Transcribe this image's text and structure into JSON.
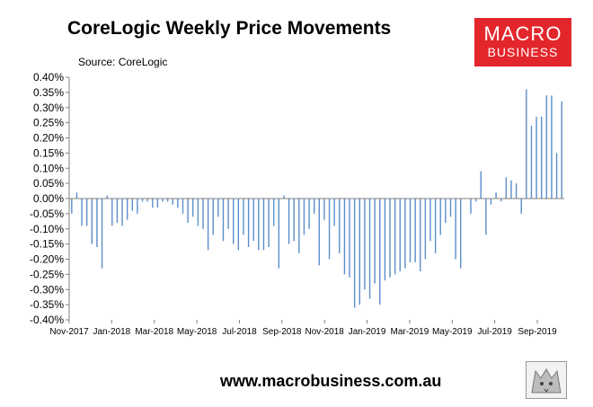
{
  "header": {
    "title": "CoreLogic Weekly Price Movements",
    "source": "Source: CoreLogic"
  },
  "logo": {
    "line1": "MACRO",
    "line2": "BUSINESS"
  },
  "footer": {
    "url": "www.macrobusiness.com.au"
  },
  "colors": {
    "bar": "#5b8ecb",
    "logo_bg": "#e3262c",
    "axis": "#808080"
  },
  "chart_data": {
    "type": "bar",
    "title": "CoreLogic Weekly Price Movements",
    "source": "Source: CoreLogic",
    "ylim": [
      -0.4,
      0.4
    ],
    "yticks": [
      "0.40%",
      "0.35%",
      "0.30%",
      "0.25%",
      "0.20%",
      "0.15%",
      "0.10%",
      "0.05%",
      "0.00%",
      "-0.05%",
      "-0.10%",
      "-0.15%",
      "-0.20%",
      "-0.25%",
      "-0.30%",
      "-0.35%",
      "-0.40%"
    ],
    "xtick_labels": [
      "Nov-2017",
      "Jan-2018",
      "Mar-2018",
      "May-2018",
      "Jul-2018",
      "Sep-2018",
      "Nov-2018",
      "Jan-2019",
      "Mar-2019",
      "May-2019",
      "Jul-2019",
      "Sep-2019"
    ],
    "grid": false,
    "unit": "%",
    "values": [
      -0.05,
      0.02,
      -0.09,
      -0.09,
      -0.15,
      -0.16,
      -0.23,
      0.01,
      -0.09,
      -0.08,
      -0.09,
      -0.07,
      -0.04,
      -0.05,
      -0.01,
      -0.01,
      -0.03,
      -0.03,
      -0.01,
      -0.01,
      -0.02,
      -0.03,
      -0.05,
      -0.08,
      -0.06,
      -0.09,
      -0.1,
      -0.17,
      -0.12,
      -0.06,
      -0.14,
      -0.1,
      -0.15,
      -0.17,
      -0.12,
      -0.16,
      -0.14,
      -0.17,
      -0.17,
      -0.16,
      -0.09,
      -0.23,
      0.01,
      -0.15,
      -0.14,
      -0.18,
      -0.12,
      -0.1,
      -0.05,
      -0.22,
      -0.07,
      -0.2,
      -0.09,
      -0.18,
      -0.25,
      -0.26,
      -0.36,
      -0.35,
      -0.3,
      -0.33,
      -0.28,
      -0.35,
      -0.27,
      -0.26,
      -0.25,
      -0.24,
      -0.23,
      -0.21,
      -0.21,
      -0.24,
      -0.2,
      -0.14,
      -0.18,
      -0.12,
      -0.08,
      -0.06,
      -0.2,
      -0.23,
      0.0,
      -0.05,
      -0.01,
      0.09,
      -0.12,
      -0.02,
      0.02,
      -0.01,
      0.07,
      0.06,
      0.05,
      -0.05,
      0.36,
      0.24,
      0.27,
      0.27,
      0.34,
      0.34,
      0.15,
      0.32
    ]
  }
}
